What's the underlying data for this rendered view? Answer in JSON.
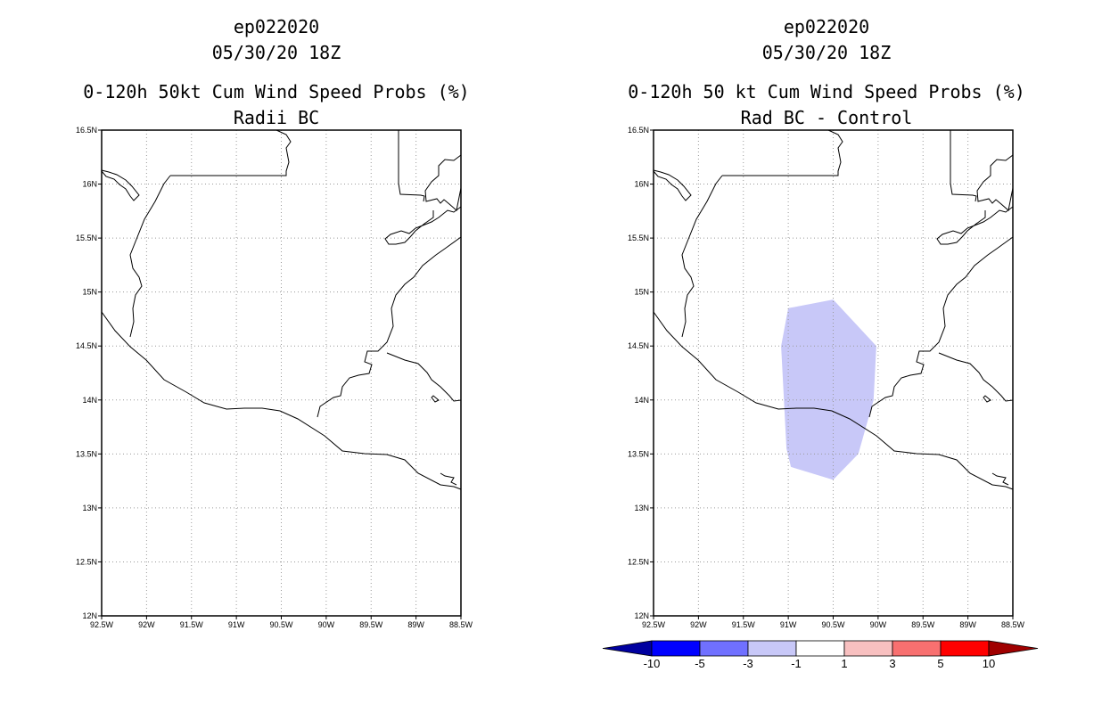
{
  "left_panel": {
    "line1": "ep022020",
    "line2": "05/30/20 18Z",
    "line3": "0-120h 50kt Cum Wind Speed Probs (%)",
    "line4": "Radii BC"
  },
  "right_panel": {
    "line1": "ep022020",
    "line2": "05/30/20 18Z",
    "line3": "0-120h 50 kt Cum Wind Speed Probs (%)",
    "line4": "Rad BC - Control"
  },
  "map_axes": {
    "lat_labels": [
      "16.5N",
      "16N",
      "15.5N",
      "15N",
      "14.5N",
      "14N",
      "13.5N",
      "13N",
      "12.5N",
      "12N"
    ],
    "lon_labels": [
      "92.5W",
      "92W",
      "91.5W",
      "91W",
      "90.5W",
      "90W",
      "89.5W",
      "89W",
      "88.5W"
    ],
    "lat_range": [
      12.0,
      16.5
    ],
    "lon_range": [
      -92.5,
      -88.5
    ]
  },
  "difference_area": {
    "value_range": "-3 to -1",
    "color": "#c8c8f8",
    "polygon_lonlat": [
      [
        -91.0,
        14.85
      ],
      [
        -90.5,
        14.93
      ],
      [
        -90.02,
        14.5
      ],
      [
        -90.05,
        14.0
      ],
      [
        -90.22,
        13.5
      ],
      [
        -90.5,
        13.26
      ],
      [
        -90.97,
        13.38
      ],
      [
        -91.02,
        13.55
      ],
      [
        -91.08,
        14.5
      ]
    ]
  },
  "colorbar": {
    "labels": [
      "-10",
      "-5",
      "-3",
      "-1",
      "1",
      "3",
      "5",
      "10"
    ],
    "colors": [
      "#0000a0",
      "#0000ff",
      "#7070ff",
      "#c8c8f8",
      "#ffffff",
      "#f8c0c0",
      "#f87070",
      "#ff0000",
      "#a00000"
    ]
  },
  "colors": {
    "coastline": "#000000",
    "grid": "#9a9a9a",
    "frame": "#000000"
  }
}
